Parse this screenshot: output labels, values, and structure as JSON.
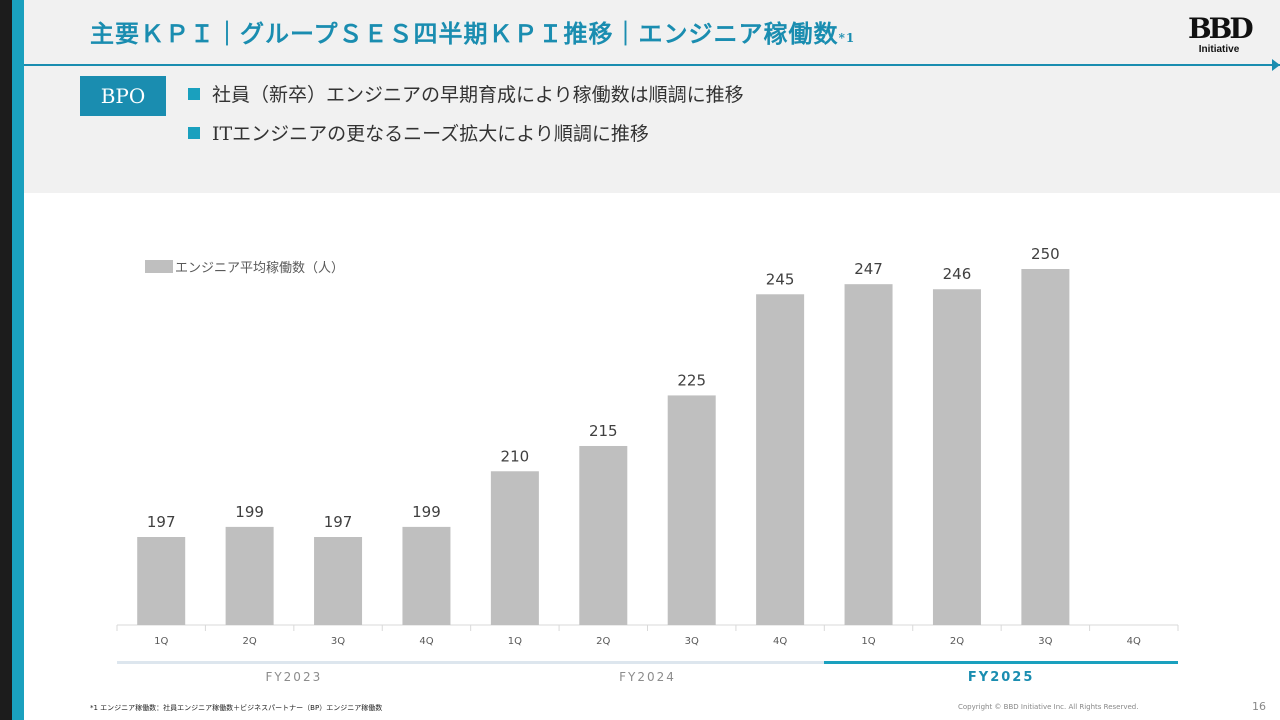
{
  "header": {
    "title": "主要ＫＰＩ｜グループＳＥＳ四半期ＫＰＩ推移｜エンジニア稼働数",
    "title_sup": "*1",
    "logo_mark": "BBD",
    "logo_text": "Initiative"
  },
  "summary": {
    "tag": "BPO",
    "bullets": [
      "社員（新卒）エンジニアの早期育成により稼働数は順調に推移",
      "ITエンジニアの更なるニーズ拡大により順調に推移"
    ]
  },
  "chart_data": {
    "type": "bar",
    "legend": "エンジニア平均稼働数（人）",
    "legend_position": "top-left",
    "categories": [
      "1Q",
      "2Q",
      "3Q",
      "4Q",
      "1Q",
      "2Q",
      "3Q",
      "4Q",
      "1Q",
      "2Q",
      "3Q",
      "4Q"
    ],
    "groups": [
      {
        "label": "FY2023",
        "start": 0,
        "end": 3,
        "active": false
      },
      {
        "label": "FY2024",
        "start": 4,
        "end": 7,
        "active": false
      },
      {
        "label": "FY2025",
        "start": 8,
        "end": 11,
        "active": true
      }
    ],
    "series": [
      {
        "name": "エンジニア平均稼働数（人）",
        "values": [
          197,
          199,
          197,
          199,
          210,
          215,
          225,
          245,
          247,
          246,
          250,
          null
        ]
      }
    ],
    "grid": false,
    "colors": {
      "bar": "#bfbfbf",
      "accent": "#1aa0be"
    }
  },
  "footer": {
    "footnote": "*1 エンジニア稼働数：社員エンジニア稼働数＋ビジネスパートナー（BP）エンジニア稼働数",
    "copyright": "Copyright © BBD Initiative Inc. All Rights Reserved.",
    "page_number": "16"
  },
  "colors": {
    "brand": "#1a8db0",
    "accent": "#1aa0be",
    "dark_bar": "#1c1c1c"
  }
}
